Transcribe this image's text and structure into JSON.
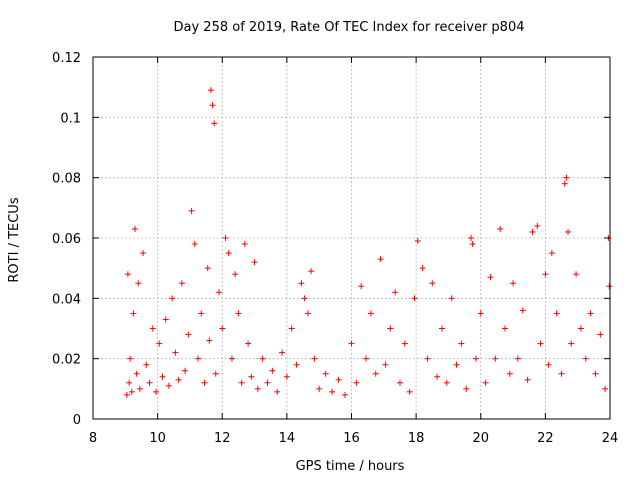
{
  "chart_data": {
    "type": "scatter",
    "title": "Day 258 of 2019, Rate Of TEC Index for receiver p804",
    "xlabel": "GPS time / hours",
    "ylabel": "ROTI / TECUs",
    "xlim": [
      8,
      24
    ],
    "ylim": [
      0,
      0.12
    ],
    "x_ticks": [
      "8",
      "10",
      "12",
      "14",
      "16",
      "18",
      "20",
      "22",
      "24"
    ],
    "y_ticks": [
      "0",
      "0.02",
      "0.04",
      "0.06",
      "0.08",
      "0.1",
      "0.12"
    ],
    "grid": true,
    "marker": "plus",
    "color": "#ff0000",
    "series": [
      {
        "name": "ROTI",
        "x": [
          9.05,
          9.08,
          9.12,
          9.15,
          9.2,
          9.25,
          9.3,
          9.35,
          9.4,
          9.45,
          9.55,
          9.65,
          9.75,
          9.85,
          9.95,
          10.05,
          10.15,
          10.25,
          10.35,
          10.45,
          10.55,
          10.65,
          10.75,
          10.85,
          10.95,
          11.05,
          11.15,
          11.25,
          11.35,
          11.45,
          11.55,
          11.6,
          11.65,
          11.7,
          11.75,
          11.8,
          11.9,
          12.0,
          12.1,
          12.2,
          12.3,
          12.4,
          12.5,
          12.6,
          12.7,
          12.8,
          12.9,
          13.0,
          13.1,
          13.25,
          13.4,
          13.55,
          13.7,
          13.85,
          14.0,
          14.15,
          14.3,
          14.45,
          14.55,
          14.65,
          14.75,
          14.85,
          15.0,
          15.2,
          15.4,
          15.6,
          15.8,
          16.0,
          16.15,
          16.3,
          16.45,
          16.6,
          16.75,
          16.9,
          17.05,
          17.2,
          17.35,
          17.5,
          17.65,
          17.8,
          17.95,
          18.05,
          18.2,
          18.35,
          18.5,
          18.65,
          18.8,
          18.95,
          19.1,
          19.25,
          19.4,
          19.55,
          19.7,
          19.75,
          19.85,
          20.0,
          20.15,
          20.3,
          20.45,
          20.6,
          20.75,
          20.9,
          21.0,
          21.15,
          21.3,
          21.45,
          21.6,
          21.75,
          21.85,
          22.0,
          22.1,
          22.2,
          22.35,
          22.5,
          22.6,
          22.65,
          22.7,
          22.8,
          22.95,
          23.1,
          23.25,
          23.4,
          23.55,
          23.7,
          23.85,
          23.95,
          23.98
        ],
        "y": [
          0.008,
          0.048,
          0.012,
          0.02,
          0.009,
          0.035,
          0.063,
          0.015,
          0.045,
          0.01,
          0.055,
          0.018,
          0.012,
          0.03,
          0.009,
          0.025,
          0.014,
          0.033,
          0.011,
          0.04,
          0.022,
          0.013,
          0.045,
          0.016,
          0.028,
          0.069,
          0.058,
          0.02,
          0.035,
          0.012,
          0.05,
          0.026,
          0.109,
          0.104,
          0.098,
          0.015,
          0.042,
          0.03,
          0.06,
          0.055,
          0.02,
          0.048,
          0.035,
          0.012,
          0.058,
          0.025,
          0.014,
          0.052,
          0.01,
          0.02,
          0.012,
          0.016,
          0.009,
          0.022,
          0.014,
          0.03,
          0.018,
          0.045,
          0.04,
          0.035,
          0.049,
          0.02,
          0.01,
          0.015,
          0.009,
          0.013,
          0.008,
          0.025,
          0.012,
          0.044,
          0.02,
          0.035,
          0.015,
          0.053,
          0.018,
          0.03,
          0.042,
          0.012,
          0.025,
          0.009,
          0.04,
          0.059,
          0.05,
          0.02,
          0.045,
          0.014,
          0.03,
          0.012,
          0.04,
          0.018,
          0.025,
          0.01,
          0.06,
          0.058,
          0.02,
          0.035,
          0.012,
          0.047,
          0.02,
          0.063,
          0.03,
          0.015,
          0.045,
          0.02,
          0.036,
          0.013,
          0.062,
          0.064,
          0.025,
          0.048,
          0.018,
          0.055,
          0.035,
          0.015,
          0.078,
          0.08,
          0.062,
          0.025,
          0.048,
          0.03,
          0.02,
          0.035,
          0.015,
          0.028,
          0.01,
          0.06,
          0.044
        ]
      }
    ]
  }
}
